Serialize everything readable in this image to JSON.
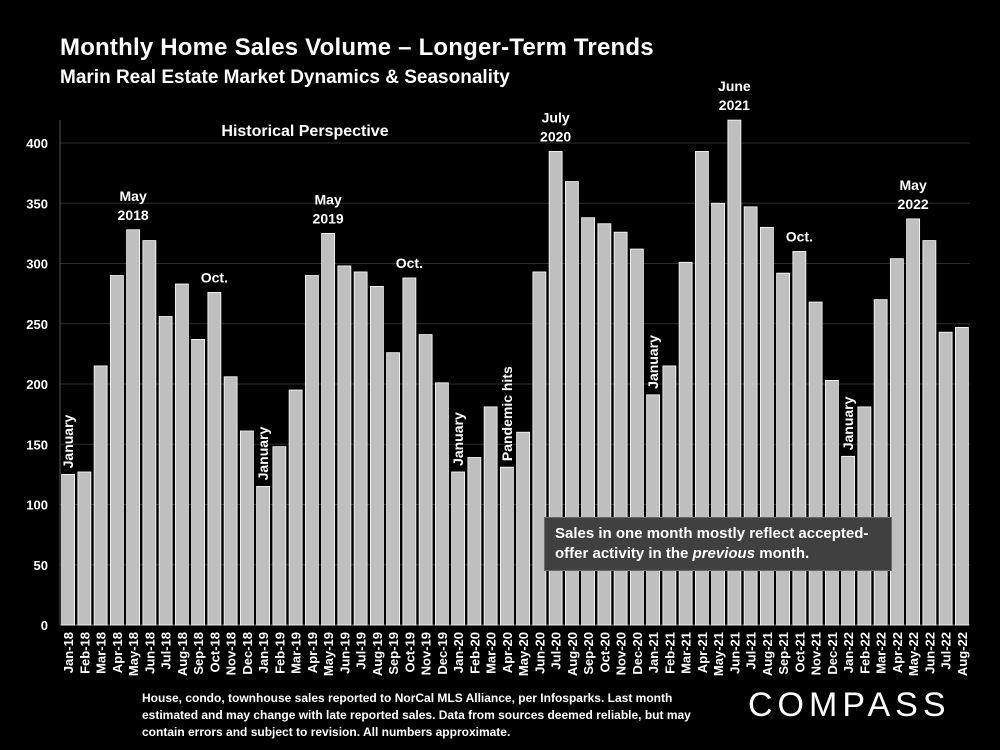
{
  "header": {
    "title": "Monthly Home Sales Volume – Longer-Term Trends",
    "subtitle": "Marin Real Estate Market Dynamics & Seasonality"
  },
  "callout": {
    "line1": "Sales in one month mostly reflect accepted-",
    "line2_pre": "offer activity in the ",
    "line2_em": "previous",
    "line2_post": " month."
  },
  "footnote": "House, condo, townhouse sales reported to NorCal MLS Alliance, per Infosparks. Last month estimated and may change with late reported sales. Data from sources deemed reliable, but may contain errors and subject to revision. All numbers approximate.",
  "logo": "COMPASS",
  "colors": {
    "bar": "#bfbfbf",
    "bar_stroke": "#ffffff",
    "background": "#000000",
    "grid": "#2e2e2e"
  },
  "chart_data": {
    "type": "bar",
    "title": "Monthly Home Sales Volume – Longer-Term Trends",
    "xlabel": "",
    "ylabel": "",
    "ylim": [
      0,
      420
    ],
    "yticks": [
      0,
      50,
      100,
      150,
      200,
      250,
      300,
      350,
      400
    ],
    "grid": true,
    "categories": [
      "Jan-18",
      "Feb-18",
      "Mar-18",
      "Apr-18",
      "May-18",
      "Jun-18",
      "Jul-18",
      "Aug-18",
      "Sep-18",
      "Oct-18",
      "Nov-18",
      "Dec-18",
      "Jan-19",
      "Feb-19",
      "Mar-19",
      "Apr-19",
      "May-19",
      "Jun-19",
      "Jul-19",
      "Aug-19",
      "Sep-19",
      "Oct-19",
      "Nov-19",
      "Dec-19",
      "Jan-20",
      "Feb-20",
      "Mar-20",
      "Apr-20",
      "May-20",
      "Jun-20",
      "Jul-20",
      "Aug-20",
      "Sep-20",
      "Oct-20",
      "Nov-20",
      "Dec-20",
      "Jan-21",
      "Feb-21",
      "Mar-21",
      "Apr-21",
      "May-21",
      "Jun-21",
      "Jul-21",
      "Aug-21",
      "Sep-21",
      "Oct-21",
      "Nov-21",
      "Dec-21",
      "Jan-22",
      "Feb-22",
      "Mar-22",
      "Apr-22",
      "May-22",
      "Jun-22",
      "Jul-22",
      "Aug-22"
    ],
    "values": [
      125,
      127,
      215,
      290,
      328,
      319,
      256,
      283,
      237,
      276,
      206,
      161,
      115,
      148,
      195,
      290,
      325,
      298,
      293,
      281,
      226,
      288,
      241,
      201,
      127,
      139,
      181,
      131,
      160,
      293,
      393,
      368,
      338,
      333,
      326,
      312,
      191,
      215,
      301,
      393,
      350,
      419,
      347,
      330,
      292,
      310,
      268,
      203,
      140,
      181,
      270,
      304,
      337,
      319,
      243,
      247
    ],
    "annotations": [
      {
        "text": [
          "January"
        ],
        "index": 0,
        "vertical": true
      },
      {
        "text": [
          "May",
          "2018"
        ],
        "index": 4,
        "vertical": false
      },
      {
        "text": [
          "Oct."
        ],
        "index": 9,
        "vertical": false
      },
      {
        "text": [
          "January"
        ],
        "index": 12,
        "vertical": true
      },
      {
        "text": [
          "May",
          "2019"
        ],
        "index": 16,
        "vertical": false
      },
      {
        "text": [
          "Oct."
        ],
        "index": 21,
        "vertical": false
      },
      {
        "text": [
          "January"
        ],
        "index": 24,
        "vertical": true
      },
      {
        "text": [
          "Pandemic hits"
        ],
        "index": 27,
        "vertical": true
      },
      {
        "text": [
          "July",
          "2020"
        ],
        "index": 30,
        "vertical": false
      },
      {
        "text": [
          "January"
        ],
        "index": 36,
        "vertical": true
      },
      {
        "text": [
          "June",
          "2021"
        ],
        "index": 41,
        "vertical": false
      },
      {
        "text": [
          "Oct."
        ],
        "index": 45,
        "vertical": false
      },
      {
        "text": [
          "January"
        ],
        "index": 48,
        "vertical": true
      },
      {
        "text": [
          "May",
          "2022"
        ],
        "index": 52,
        "vertical": false
      }
    ],
    "panel_label": "Historical Perspective"
  }
}
